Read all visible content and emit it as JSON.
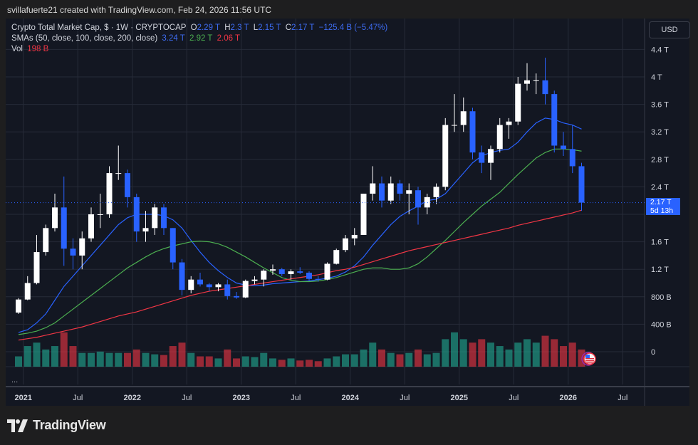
{
  "credit": "svillafuerte21 created with TradingView.com, Feb 24, 2026 11:56 UTC",
  "legend": {
    "symbol": "Crypto Total Market Cap, $ · 1W · CRYPTOCAP",
    "o_label": "O",
    "o": "2.29 T",
    "h_label": "H",
    "h": "2.3 T",
    "l_label": "L",
    "l": "2.15 T",
    "c_label": "C",
    "c": "2.17 T",
    "change": "−125.4 B (−5.47%)",
    "sma_label": "SMAs (50, close, 100, close, 200, close)",
    "sma50": "3.24 T",
    "sma100": "2.92 T",
    "sma200": "2.06 T",
    "vol_label": "Vol",
    "vol": "198 B"
  },
  "currency_button": "USD",
  "price_label": {
    "value": "2.17 T",
    "countdown": "5d 13h"
  },
  "pane_more": "...",
  "brand": "TradingView",
  "colors": {
    "up_candle": "#ffffff",
    "down_candle": "#2962ff",
    "sma50": "#2962ff",
    "sma100": "#4caf50",
    "sma200": "#f23645",
    "vol_up": "#22ab94",
    "vol_down": "#f23645",
    "background": "#131722",
    "accent": "#2962ff"
  },
  "icons": {
    "event_flag": "us-flag-icon",
    "logo": "tradingview-logo-icon"
  },
  "chart_data": {
    "type": "candlestick",
    "interval_note": "1W",
    "y_unit": "T",
    "ylim": [
      0,
      4.6
    ],
    "y_ticks": [
      "4.4 T",
      "4 T",
      "3.6 T",
      "3.2 T",
      "2.8 T",
      "2.4 T",
      "1.6 T",
      "1.2 T",
      "800 B",
      "400 B",
      "0"
    ],
    "y_tick_values": [
      4.4,
      4.0,
      3.6,
      3.2,
      2.8,
      2.4,
      1.6,
      1.2,
      0.8,
      0.4,
      0
    ],
    "x_ticks": [
      {
        "label": "2021",
        "date": "2021-01",
        "bold": true
      },
      {
        "label": "Jul",
        "date": "2021-07"
      },
      {
        "label": "2022",
        "date": "2022-01",
        "bold": true
      },
      {
        "label": "Jul",
        "date": "2022-07"
      },
      {
        "label": "2023",
        "date": "2023-01",
        "bold": true
      },
      {
        "label": "Jul",
        "date": "2023-07"
      },
      {
        "label": "2024",
        "date": "2024-01",
        "bold": true
      },
      {
        "label": "Jul",
        "date": "2024-07"
      },
      {
        "label": "2025",
        "date": "2025-01",
        "bold": true
      },
      {
        "label": "Jul",
        "date": "2025-07"
      },
      {
        "label": "2026",
        "date": "2026-01",
        "bold": true
      },
      {
        "label": "Jul",
        "date": "2026-07"
      }
    ],
    "grid": true,
    "last_price": 2.17,
    "dates": [
      "2020-12",
      "2021-01",
      "2021-02",
      "2021-03",
      "2021-04",
      "2021-05",
      "2021-06",
      "2021-07",
      "2021-08",
      "2021-09",
      "2021-10",
      "2021-11",
      "2021-12",
      "2022-01",
      "2022-02",
      "2022-03",
      "2022-04",
      "2022-05",
      "2022-06",
      "2022-07",
      "2022-08",
      "2022-09",
      "2022-10",
      "2022-11",
      "2022-12",
      "2023-01",
      "2023-02",
      "2023-03",
      "2023-04",
      "2023-05",
      "2023-06",
      "2023-07",
      "2023-08",
      "2023-09",
      "2023-10",
      "2023-11",
      "2023-12",
      "2024-01",
      "2024-02",
      "2024-03",
      "2024-04",
      "2024-05",
      "2024-06",
      "2024-07",
      "2024-08",
      "2024-09",
      "2024-10",
      "2024-11",
      "2024-12",
      "2025-01",
      "2025-02",
      "2025-03",
      "2025-04",
      "2025-05",
      "2025-06",
      "2025-07",
      "2025-08",
      "2025-09",
      "2025-10",
      "2025-11",
      "2025-12",
      "2026-01",
      "2026-02"
    ],
    "ohlc": [
      [
        0.57,
        0.78,
        0.55,
        0.76
      ],
      [
        0.76,
        1.1,
        0.75,
        1.0
      ],
      [
        1.0,
        1.7,
        0.98,
        1.45
      ],
      [
        1.45,
        1.85,
        1.4,
        1.8
      ],
      [
        1.8,
        2.3,
        1.75,
        2.1
      ],
      [
        2.1,
        2.55,
        1.25,
        1.5
      ],
      [
        1.5,
        1.65,
        1.2,
        1.4
      ],
      [
        1.4,
        1.75,
        1.2,
        1.65
      ],
      [
        1.65,
        2.1,
        1.6,
        2.0
      ],
      [
        2.0,
        2.3,
        1.8,
        2.0
      ],
      [
        2.0,
        2.7,
        1.95,
        2.6
      ],
      [
        2.6,
        3.0,
        2.5,
        2.6
      ],
      [
        2.6,
        2.65,
        2.1,
        2.25
      ],
      [
        2.25,
        2.3,
        1.6,
        1.75
      ],
      [
        1.75,
        2.05,
        1.6,
        1.8
      ],
      [
        1.8,
        2.15,
        1.7,
        2.1
      ],
      [
        2.1,
        2.15,
        1.7,
        1.8
      ],
      [
        1.8,
        1.8,
        1.2,
        1.3
      ],
      [
        1.3,
        1.35,
        0.82,
        0.9
      ],
      [
        0.9,
        1.1,
        0.85,
        1.05
      ],
      [
        1.05,
        1.15,
        0.95,
        0.98
      ],
      [
        0.98,
        1.0,
        0.88,
        0.94
      ],
      [
        0.94,
        1.0,
        0.88,
        0.98
      ],
      [
        0.98,
        1.05,
        0.76,
        0.81
      ],
      [
        0.81,
        0.87,
        0.77,
        0.79
      ],
      [
        0.79,
        1.05,
        0.78,
        1.03
      ],
      [
        1.03,
        1.1,
        0.98,
        1.05
      ],
      [
        1.05,
        1.2,
        0.95,
        1.18
      ],
      [
        1.18,
        1.27,
        1.12,
        1.2
      ],
      [
        1.2,
        1.22,
        1.1,
        1.13
      ],
      [
        1.13,
        1.2,
        1.05,
        1.17
      ],
      [
        1.17,
        1.23,
        1.13,
        1.15
      ],
      [
        1.15,
        1.17,
        1.03,
        1.06
      ],
      [
        1.06,
        1.1,
        1.02,
        1.05
      ],
      [
        1.05,
        1.3,
        1.04,
        1.28
      ],
      [
        1.28,
        1.5,
        1.27,
        1.48
      ],
      [
        1.48,
        1.7,
        1.45,
        1.65
      ],
      [
        1.65,
        1.8,
        1.55,
        1.7
      ],
      [
        1.7,
        2.3,
        1.7,
        2.3
      ],
      [
        2.3,
        2.7,
        2.2,
        2.45
      ],
      [
        2.45,
        2.55,
        2.1,
        2.2
      ],
      [
        2.2,
        2.55,
        2.15,
        2.45
      ],
      [
        2.45,
        2.5,
        2.2,
        2.3
      ],
      [
        2.3,
        2.45,
        2.0,
        2.35
      ],
      [
        2.35,
        2.4,
        1.85,
        2.1
      ],
      [
        2.1,
        2.3,
        2.0,
        2.25
      ],
      [
        2.25,
        2.45,
        2.15,
        2.4
      ],
      [
        2.4,
        3.4,
        2.35,
        3.3
      ],
      [
        3.3,
        3.75,
        3.2,
        3.3
      ],
      [
        3.3,
        3.7,
        3.2,
        3.5
      ],
      [
        3.5,
        3.55,
        2.8,
        2.9
      ],
      [
        2.9,
        3.0,
        2.6,
        2.75
      ],
      [
        2.75,
        3.0,
        2.5,
        2.95
      ],
      [
        2.95,
        3.4,
        2.9,
        3.3
      ],
      [
        3.3,
        3.4,
        3.1,
        3.35
      ],
      [
        3.35,
        4.0,
        3.3,
        3.9
      ],
      [
        3.9,
        4.2,
        3.8,
        3.95
      ],
      [
        3.95,
        4.05,
        3.75,
        3.95
      ],
      [
        3.95,
        4.28,
        3.6,
        3.75
      ],
      [
        3.75,
        3.8,
        2.9,
        3.0
      ],
      [
        3.0,
        3.2,
        2.85,
        2.95
      ],
      [
        2.95,
        3.3,
        2.6,
        2.7
      ],
      [
        2.7,
        2.75,
        2.05,
        2.17
      ]
    ],
    "volume_B": [
      150,
      300,
      350,
      250,
      300,
      500,
      300,
      200,
      200,
      220,
      200,
      200,
      200,
      250,
      200,
      180,
      170,
      300,
      350,
      200,
      150,
      150,
      120,
      250,
      120,
      150,
      140,
      200,
      120,
      100,
      120,
      90,
      100,
      80,
      120,
      150,
      180,
      180,
      250,
      350,
      250,
      200,
      180,
      200,
      250,
      180,
      200,
      400,
      500,
      400,
      350,
      400,
      350,
      300,
      250,
      350,
      400,
      350,
      450,
      400,
      300,
      350,
      250
    ],
    "series": [
      {
        "name": "SMA 50",
        "color": "#2962ff",
        "values": [
          0.28,
          0.32,
          0.42,
          0.55,
          0.75,
          0.95,
          1.1,
          1.25,
          1.4,
          1.55,
          1.7,
          1.85,
          1.95,
          2.0,
          2.0,
          2.0,
          1.98,
          1.92,
          1.8,
          1.62,
          1.45,
          1.3,
          1.18,
          1.08,
          1.0,
          0.97,
          0.96,
          0.97,
          0.99,
          1.0,
          1.01,
          1.02,
          1.03,
          1.05,
          1.07,
          1.1,
          1.16,
          1.25,
          1.38,
          1.55,
          1.7,
          1.85,
          1.97,
          2.05,
          2.12,
          2.2,
          2.22,
          2.3,
          2.45,
          2.6,
          2.75,
          2.85,
          2.9,
          2.93,
          2.95,
          3.05,
          3.2,
          3.33,
          3.4,
          3.38,
          3.33,
          3.3,
          3.24
        ]
      },
      {
        "name": "SMA 100",
        "color": "#4caf50",
        "values": [
          0.25,
          0.27,
          0.3,
          0.35,
          0.42,
          0.52,
          0.62,
          0.72,
          0.82,
          0.92,
          1.02,
          1.12,
          1.22,
          1.3,
          1.38,
          1.45,
          1.5,
          1.54,
          1.57,
          1.6,
          1.61,
          1.6,
          1.57,
          1.52,
          1.45,
          1.38,
          1.3,
          1.22,
          1.15,
          1.08,
          1.04,
          1.02,
          1.02,
          1.03,
          1.05,
          1.08,
          1.12,
          1.16,
          1.2,
          1.22,
          1.22,
          1.2,
          1.2,
          1.22,
          1.28,
          1.38,
          1.5,
          1.62,
          1.75,
          1.88,
          2.0,
          2.12,
          2.22,
          2.32,
          2.45,
          2.58,
          2.7,
          2.82,
          2.9,
          2.95,
          2.95,
          2.94,
          2.92
        ]
      },
      {
        "name": "SMA 200",
        "color": "#f23645",
        "values": [
          0.17,
          0.19,
          0.21,
          0.24,
          0.27,
          0.3,
          0.33,
          0.36,
          0.4,
          0.44,
          0.48,
          0.52,
          0.55,
          0.58,
          0.62,
          0.66,
          0.7,
          0.74,
          0.78,
          0.82,
          0.85,
          0.88,
          0.9,
          0.92,
          0.94,
          0.96,
          0.98,
          1.0,
          1.02,
          1.04,
          1.06,
          1.08,
          1.1,
          1.12,
          1.15,
          1.18,
          1.2,
          1.23,
          1.27,
          1.31,
          1.35,
          1.39,
          1.43,
          1.47,
          1.5,
          1.53,
          1.56,
          1.59,
          1.62,
          1.65,
          1.68,
          1.71,
          1.74,
          1.77,
          1.8,
          1.84,
          1.87,
          1.9,
          1.93,
          1.96,
          1.99,
          2.02,
          2.06
        ]
      }
    ]
  }
}
